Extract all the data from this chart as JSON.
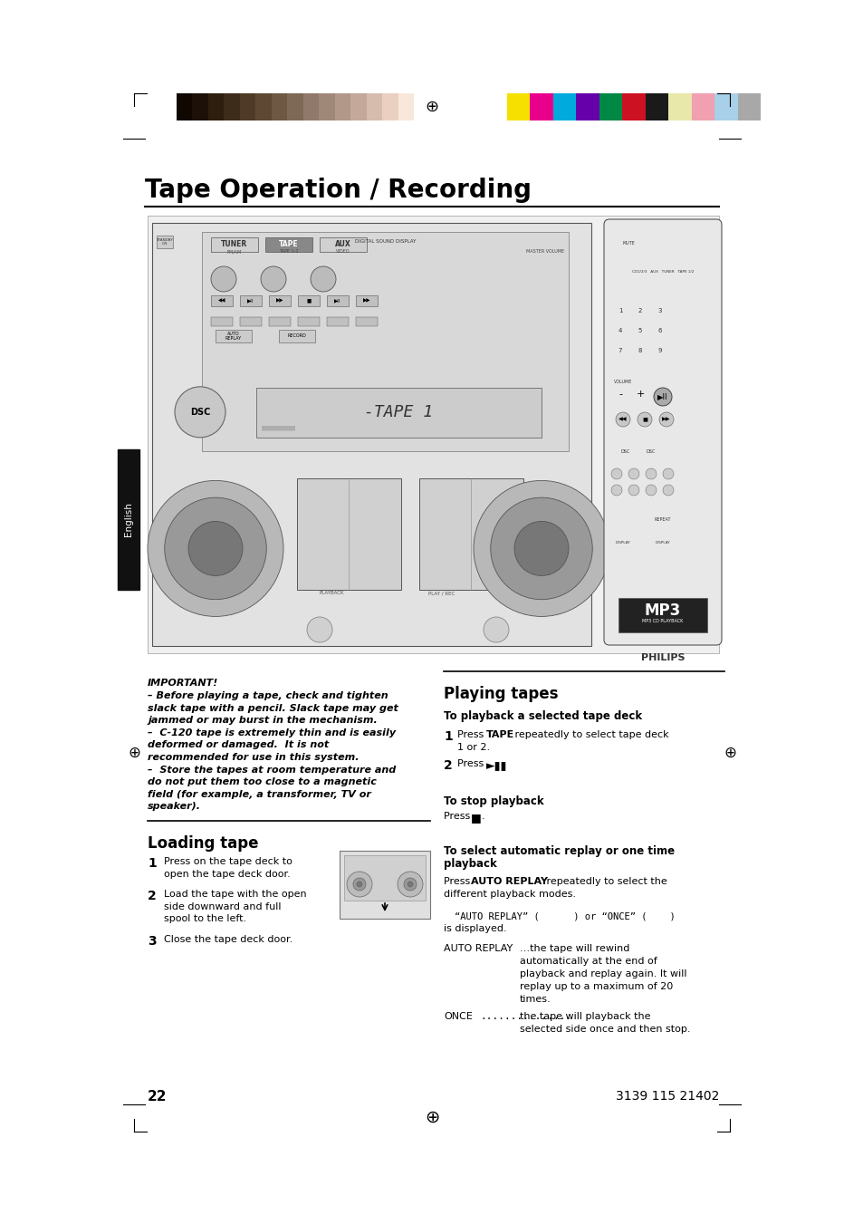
{
  "bg_color": "#ffffff",
  "page_title": "Tape Operation / Recording",
  "color_bar_left_colors": [
    "#100800",
    "#1c1008",
    "#2e1e0e",
    "#3e2c1a",
    "#4e3a26",
    "#5e4834",
    "#6e5844",
    "#7e6856",
    "#90786a",
    "#a08878",
    "#b29888",
    "#c4a89a",
    "#d6bcac",
    "#ead0c0",
    "#f8e8dc",
    "#ffffff"
  ],
  "color_bar_right_colors": [
    "#f5e000",
    "#e8008c",
    "#00aadc",
    "#6600aa",
    "#008844",
    "#cc1122",
    "#1a1a1a",
    "#e8e8aa",
    "#f0a0b0",
    "#a8d0e8",
    "#a8a8a8"
  ],
  "left_sidebar_text": "English",
  "section1_title": "Loading tape",
  "section2_title": "Playing tapes",
  "important_title": "IMPORTANT!",
  "page_number": "22",
  "doc_number": "3139 115 21402"
}
